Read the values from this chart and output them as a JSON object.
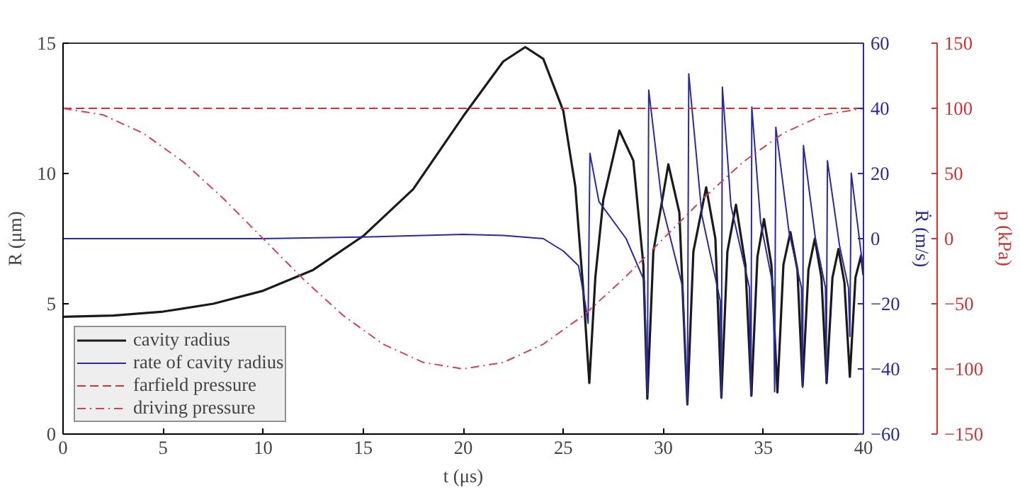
{
  "chart_data": {
    "type": "line",
    "xlabel": "t (μs)",
    "ylabel": "R (μm)",
    "y2label": "Ṙ (m/s)",
    "y3label": "p (kPa)",
    "xlim": [
      0,
      40
    ],
    "xticks": [
      0,
      5,
      10,
      15,
      20,
      25,
      30,
      35,
      40
    ],
    "ylim": [
      0,
      15
    ],
    "yticks": [
      0,
      5,
      10,
      15
    ],
    "y2lim": [
      -60,
      60
    ],
    "y2ticks": [
      -60,
      -40,
      -20,
      0,
      20,
      40,
      60
    ],
    "y3lim": [
      -150,
      150
    ],
    "y3ticks": [
      -150,
      -100,
      -50,
      0,
      50,
      100,
      150
    ],
    "grid": false,
    "legend": "bottom left",
    "series": [
      {
        "name": "cavity radius",
        "color": "#1a1a1a",
        "line_style": "solid",
        "x": [
          0,
          2.5,
          5,
          7.5,
          10,
          12.5,
          15,
          17.5,
          20,
          22,
          23.1,
          24,
          25,
          25.6,
          26.0,
          26.3,
          26.6,
          27.0,
          27.8,
          28.5,
          29.0,
          29.2,
          29.5,
          30.25,
          30.8,
          31.2,
          31.5,
          32.14,
          32.6,
          32.9,
          33.2,
          33.63,
          34.1,
          34.4,
          34.7,
          35.03,
          35.4,
          35.7,
          36.0,
          36.35,
          36.7,
          36.96,
          37.25,
          37.57,
          37.9,
          38.16,
          38.45,
          38.75,
          39.05,
          39.32,
          39.6,
          39.88,
          40
        ],
        "values": [
          4.5,
          4.55,
          4.7,
          5.0,
          5.5,
          6.3,
          7.6,
          9.4,
          12.2,
          14.3,
          14.85,
          14.4,
          12.4,
          9.5,
          5.5,
          1.96,
          6.0,
          9.0,
          11.65,
          10.5,
          6.5,
          1.36,
          7.0,
          10.35,
          8.5,
          1.14,
          7.0,
          9.47,
          7.5,
          1.4,
          7.0,
          8.8,
          6.5,
          1.47,
          6.8,
          8.25,
          6.5,
          1.6,
          6.5,
          7.75,
          6.3,
          1.85,
          6.3,
          7.5,
          6.0,
          1.96,
          6.0,
          7.1,
          5.8,
          2.2,
          6.0,
          6.85,
          6.1
        ]
      },
      {
        "name": "rate of cavity radius",
        "color": "#2a2a9a",
        "line_style": "solid",
        "axis": "y2",
        "x": [
          0,
          10,
          15,
          20,
          22,
          24,
          25,
          25.76,
          26.1,
          26.24,
          26.33,
          26.78,
          28.14,
          29.05,
          29.2,
          29.27,
          29.95,
          30.97,
          31.2,
          31.27,
          31.93,
          32.84,
          32.9,
          32.95,
          33.38,
          34.3,
          34.38,
          34.42,
          34.86,
          35.5,
          35.56,
          35.62,
          36.28,
          36.9,
          36.96,
          37.0,
          37.6,
          38.1,
          38.14,
          38.2,
          38.8,
          39.25,
          39.32,
          39.39,
          40
        ],
        "values": [
          0,
          0,
          0.5,
          1.3,
          1,
          0,
          -3.8,
          -8.3,
          -20,
          -26,
          26.2,
          11.4,
          0,
          -13,
          -48,
          45.6,
          10,
          -15,
          -51,
          50.6,
          7,
          -19,
          -49,
          46.5,
          10,
          -15,
          -48,
          40.4,
          5,
          -15,
          -47,
          34.2,
          2,
          -15,
          -45.7,
          28.6,
          0,
          -15,
          -44,
          23.9,
          -2,
          -15,
          -30,
          20.1,
          -10.3
        ]
      },
      {
        "name": "farfield pressure",
        "color": "#cc3333",
        "line_style": "dashed",
        "axis": "y3",
        "x": [
          0,
          40
        ],
        "values": [
          100,
          100
        ]
      },
      {
        "name": "driving pressure",
        "color": "#cc4455",
        "line_style": "dashdot",
        "axis": "y3",
        "x": [
          0,
          2,
          4,
          6,
          8,
          10,
          12,
          14,
          16,
          18,
          20,
          22,
          24,
          26,
          28,
          30,
          32,
          34,
          36,
          38,
          40
        ],
        "values": [
          100,
          95,
          81,
          59,
          31,
          0,
          -31,
          -59,
          -81,
          -95,
          -100,
          -95,
          -81,
          -59,
          -31,
          0,
          31,
          59,
          81,
          95,
          100
        ]
      }
    ]
  }
}
